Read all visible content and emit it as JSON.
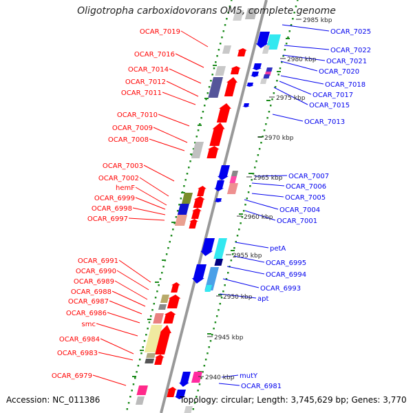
{
  "title": "Oligotropha carboxidovorans OM5, complete genome",
  "footer": {
    "accession": "Accession: NC_011386",
    "summary": "Topology: circular; Length: 3,745,629 bp; Genes: 3,770"
  },
  "colors": {
    "forward": "#ff0000",
    "reverse": "#0000ee",
    "backbone": "#999999",
    "tick": "#1a8a1a"
  },
  "kbp_marks": [
    "2985 kbp",
    "2980 kbp",
    "2975 kbp",
    "2970 kbp",
    "2965 kbp",
    "2960 kbp",
    "2955 kbp",
    "2950 kbp",
    "2945 kbp",
    "2940 kbp"
  ],
  "left_labels": [
    "OCAR_7019",
    "OCAR_7016",
    "OCAR_7014",
    "OCAR_7012",
    "OCAR_7011",
    "OCAR_7010",
    "OCAR_7009",
    "OCAR_7008",
    "OCAR_7003",
    "OCAR_7002",
    "hemF",
    "OCAR_6999",
    "OCAR_6998",
    "OCAR_6997",
    "OCAR_6991",
    "OCAR_6990",
    "OCAR_6989",
    "OCAR_6988",
    "OCAR_6987",
    "OCAR_6986",
    "smc",
    "OCAR_6984",
    "OCAR_6983",
    "OCAR_6979"
  ],
  "right_labels": [
    "OCAR_7025",
    "OCAR_7022",
    "OCAR_7021",
    "OCAR_7020",
    "OCAR_7018",
    "OCAR_7017",
    "OCAR_7015",
    "OCAR_7013",
    "OCAR_7007",
    "OCAR_7006",
    "OCAR_7005",
    "OCAR_7004",
    "OCAR_7001",
    "petA",
    "OCAR_6995",
    "OCAR_6994",
    "OCAR_6993",
    "apt",
    "mutY",
    "OCAR_6981"
  ]
}
